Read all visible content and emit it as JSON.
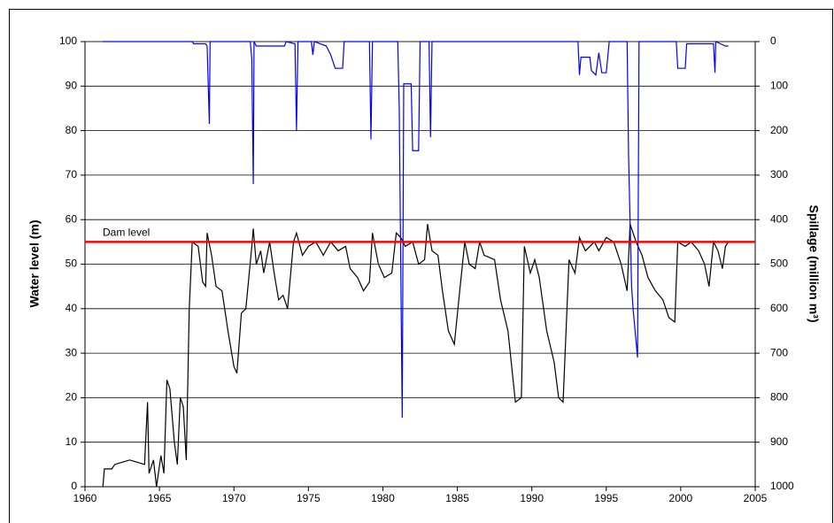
{
  "chart_data": {
    "type": "line",
    "y_label": "Water level (m)",
    "y2_label": "Spillage (million m³)",
    "xlim": [
      1960,
      2005
    ],
    "xticks": [
      1960,
      1965,
      1970,
      1975,
      1980,
      1985,
      1990,
      1995,
      2000,
      2005
    ],
    "ylim": [
      0,
      100
    ],
    "yticks": [
      0,
      10,
      20,
      30,
      40,
      50,
      60,
      70,
      80,
      90,
      100
    ],
    "y2lim": [
      1000,
      0
    ],
    "y2ticks": [
      0,
      100,
      200,
      300,
      400,
      500,
      600,
      700,
      800,
      900,
      1000
    ],
    "grid": true,
    "reference_line": {
      "value": 55,
      "label": "Dam level",
      "color": "#ff0000"
    },
    "series": [
      {
        "name": "Water level",
        "color": "#000000",
        "axis": "y",
        "x": [
          1961.2,
          1961.3,
          1961.8,
          1962,
          1962.5,
          1963,
          1963.5,
          1964,
          1964.2,
          1964.3,
          1964.6,
          1964.8,
          1965.1,
          1965.3,
          1965.5,
          1965.7,
          1966,
          1966.2,
          1966.4,
          1966.6,
          1966.8,
          1967,
          1967.2,
          1967.6,
          1967.9,
          1968.1,
          1968.2,
          1968.5,
          1968.8,
          1969.2,
          1969.6,
          1970,
          1970.2,
          1970.5,
          1970.8,
          1971.2,
          1971.3,
          1971.5,
          1971.8,
          1972,
          1972.4,
          1972.7,
          1973,
          1973.3,
          1973.6,
          1974,
          1974.2,
          1974.6,
          1975,
          1975.5,
          1976,
          1976.5,
          1977,
          1977.5,
          1977.8,
          1978.3,
          1978.7,
          1979.1,
          1979.3,
          1979.7,
          1980.1,
          1980.6,
          1980.9,
          1981.2,
          1981.5,
          1982,
          1982.4,
          1982.8,
          1983,
          1983.3,
          1983.7,
          1984,
          1984.4,
          1984.8,
          1985.1,
          1985.5,
          1985.8,
          1986.2,
          1986.5,
          1986.8,
          1987.5,
          1987.9,
          1988.4,
          1988.9,
          1989.3,
          1989.5,
          1989.9,
          1990.2,
          1990.5,
          1991,
          1991.5,
          1991.8,
          1992.1,
          1992.5,
          1992.9,
          1993.2,
          1993.6,
          1994.2,
          1994.5,
          1995,
          1995.5,
          1996,
          1996.4,
          1996.6,
          1997,
          1997.4,
          1997.8,
          1998.3,
          1998.8,
          1999.2,
          1999.6,
          1999.8,
          2000.3,
          2000.7,
          2001.2,
          2001.6,
          2001.9,
          2002.2,
          2002.5,
          2002.8,
          2003,
          2003.2
        ],
        "values": [
          0,
          4,
          4,
          5,
          5.5,
          6,
          5.5,
          5,
          19,
          3,
          6,
          0,
          7,
          3,
          24,
          22,
          10,
          5,
          20,
          18,
          6,
          40,
          55,
          54,
          46,
          45,
          57,
          52,
          45,
          44,
          35,
          27,
          25.5,
          39,
          40,
          54,
          58,
          50,
          53,
          48,
          55,
          48,
          42,
          43,
          40,
          55,
          57,
          52,
          54,
          55,
          52,
          55,
          53,
          54,
          49,
          47,
          44,
          46,
          57,
          50,
          47,
          48,
          57,
          56,
          54,
          55,
          50,
          51,
          59,
          53,
          52,
          44,
          35,
          32,
          42,
          55,
          50,
          49,
          55,
          52,
          51,
          42,
          35,
          19,
          20,
          54,
          48,
          51,
          47,
          35,
          28,
          20,
          19,
          51,
          48,
          56,
          53,
          55,
          53,
          56,
          55,
          50,
          44,
          59,
          55,
          52,
          47,
          44,
          42,
          38,
          37,
          55,
          54,
          55,
          53,
          50,
          45,
          55,
          53,
          49,
          54,
          55
        ]
      },
      {
        "name": "Spillage",
        "color": "#0000ff",
        "axis": "y2",
        "x": [
          1961.2,
          1967.2,
          1967.3,
          1968.1,
          1968.2,
          1968.35,
          1968.4,
          1971.1,
          1971.2,
          1971.3,
          1971.35,
          1971.5,
          1973.4,
          1973.5,
          1974.1,
          1974.2,
          1974.3,
          1975.2,
          1975.3,
          1975.4,
          1976.2,
          1976.5,
          1976.8,
          1977.3,
          1977.4,
          1979.1,
          1979.2,
          1979.3,
          1981,
          1981.1,
          1981.3,
          1981.4,
          1981.9,
          1982,
          1982.4,
          1982.5,
          1983.1,
          1983.2,
          1983.3,
          1993.1,
          1993.2,
          1993.3,
          1993.9,
          1994,
          1994.3,
          1994.5,
          1994.7,
          1995,
          1995.2,
          1996.4,
          1996.5,
          1996.7,
          1996.8,
          1997.1,
          1997.2,
          1999.7,
          1999.8,
          2000.3,
          2000.4,
          2002.2,
          2002.3,
          2002.35,
          2003,
          2003.2
        ],
        "values": [
          0,
          0,
          5,
          5,
          10,
          185,
          0,
          0,
          40,
          320,
          0,
          10,
          10,
          0,
          5,
          200,
          0,
          0,
          30,
          0,
          10,
          30,
          60,
          60,
          0,
          0,
          220,
          0,
          0,
          150,
          845,
          95,
          95,
          245,
          245,
          0,
          0,
          215,
          0,
          0,
          75,
          35,
          35,
          65,
          75,
          25,
          70,
          70,
          0,
          0,
          260,
          550,
          600,
          710,
          0,
          0,
          60,
          60,
          5,
          5,
          70,
          0,
          10,
          10
        ]
      }
    ]
  }
}
